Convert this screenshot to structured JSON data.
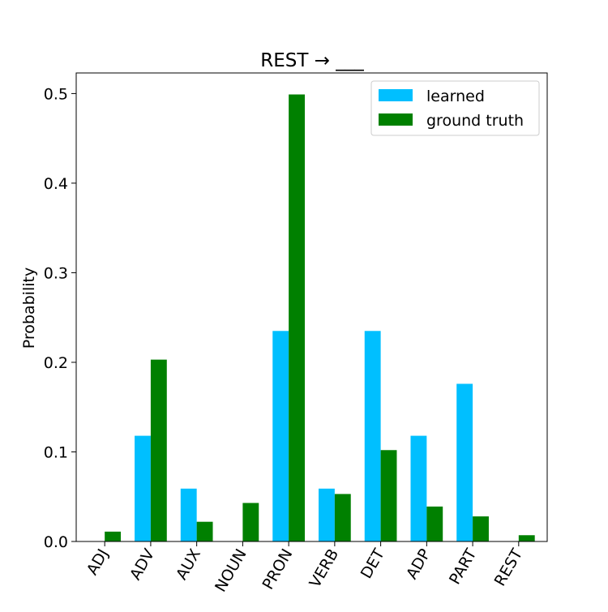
{
  "chart_data": {
    "type": "bar",
    "title": "REST → ___",
    "xlabel": "",
    "ylabel": "Probability",
    "categories": [
      "ADJ",
      "ADV",
      "AUX",
      "NOUN",
      "PRON",
      "VERB",
      "DET",
      "ADP",
      "PART",
      "REST"
    ],
    "series": [
      {
        "name": "learned",
        "color": "#00bfff",
        "values": [
          0.0,
          0.118,
          0.059,
          0.0,
          0.235,
          0.059,
          0.235,
          0.118,
          0.176,
          0.0
        ]
      },
      {
        "name": "ground truth",
        "color": "#008000",
        "values": [
          0.011,
          0.203,
          0.022,
          0.043,
          0.499,
          0.053,
          0.102,
          0.039,
          0.028,
          0.007
        ]
      }
    ],
    "ylim": [
      0,
      0.523
    ],
    "yticks": [
      0.0,
      0.1,
      0.2,
      0.3,
      0.4,
      0.5
    ],
    "ytick_labels": [
      "0.0",
      "0.1",
      "0.2",
      "0.3",
      "0.4",
      "0.5"
    ],
    "legend": "top-right",
    "grid": false
  }
}
